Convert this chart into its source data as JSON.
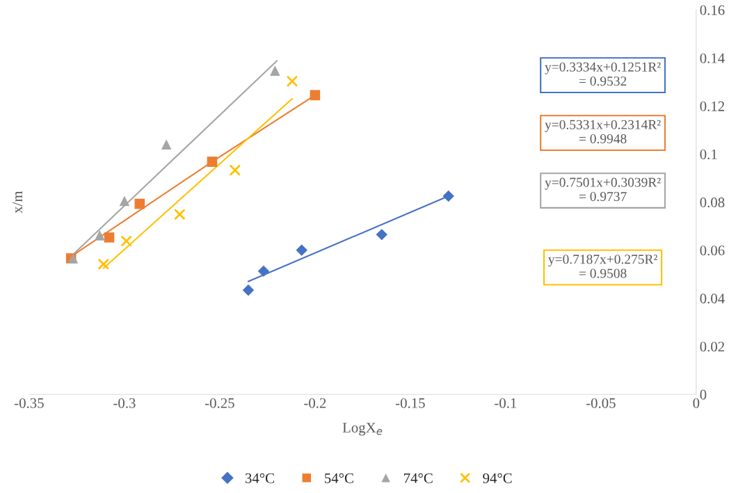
{
  "chart_data": {
    "type": "scatter",
    "xlabel": "LogX$_{e}$",
    "ylabel": "x/m",
    "xlim": [
      -0.35,
      0
    ],
    "xticks": [
      -0.35,
      -0.3,
      -0.25,
      -0.2,
      -0.15,
      -0.1,
      -0.05,
      0
    ],
    "ylim": [
      0,
      0.16
    ],
    "yticks": [
      0,
      0.02,
      0.04,
      0.06,
      0.08,
      0.1,
      0.12,
      0.14,
      0.16
    ],
    "grid": false,
    "legend": "bottom",
    "series": [
      {
        "name": "34°C",
        "color": "#4472c4",
        "marker": "diamond",
        "x": [
          -0.235,
          -0.227,
          -0.207,
          -0.165,
          -0.13
        ],
        "values": [
          0.0434,
          0.0513,
          0.06,
          0.0665,
          0.0825
        ]
      },
      {
        "name": "54°C",
        "color": "#ed7d31",
        "marker": "square",
        "x": [
          -0.328,
          -0.308,
          -0.292,
          -0.254,
          -0.2
        ],
        "values": [
          0.0566,
          0.0653,
          0.0793,
          0.0968,
          0.1245
        ]
      },
      {
        "name": "74°C",
        "color": "#a5a5a5",
        "marker": "triangle",
        "x": [
          -0.327,
          -0.313,
          -0.3,
          -0.278,
          -0.221
        ],
        "values": [
          0.0566,
          0.0662,
          0.0805,
          0.104,
          0.1347
        ]
      },
      {
        "name": "94°C",
        "color": "#ffc000",
        "marker": "cross",
        "x": [
          -0.311,
          -0.299,
          -0.271,
          -0.242,
          -0.212
        ],
        "values": [
          0.0542,
          0.0638,
          0.0749,
          0.0933,
          0.1303
        ]
      },
      {
        "type": "line",
        "color": "#4472c4",
        "marker": "none",
        "x": [
          -0.235,
          -0.13
        ],
        "values": [
          0.047,
          0.0825
        ]
      },
      {
        "type": "line",
        "color": "#ed7d31",
        "marker": "none",
        "x": [
          -0.328,
          -0.254,
          -0.2
        ],
        "values": [
          0.0574,
          0.0968,
          0.1245
        ]
      },
      {
        "type": "line",
        "color": "#a5a5a5",
        "marker": "none",
        "x": [
          -0.328,
          -0.22
        ],
        "values": [
          0.0574,
          0.1388
        ]
      },
      {
        "type": "line",
        "color": "#ffc000",
        "marker": "none",
        "x": [
          -0.311,
          -0.212
        ],
        "values": [
          0.0525,
          0.123
        ]
      }
    ],
    "annotations": [
      "y=0.3334x+0.1251R²\n= 0.9532",
      "y=0.5331x+0.2314R²\n= 0.9948",
      "y=0.7501x+0.3039R²\n= 0.9737",
      "y=0.7187x+0.275R²\n= 0.9508"
    ]
  }
}
